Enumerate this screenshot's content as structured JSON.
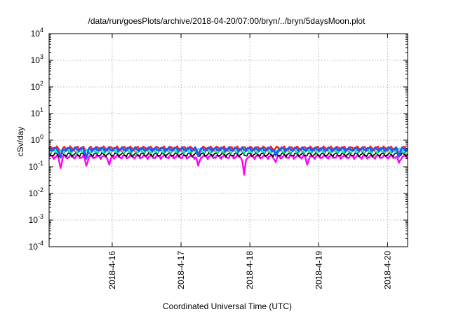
{
  "chart_data": {
    "type": "line",
    "title": "/data/run/goesPlots/archive/2018-04-20/07:00/bryn/../bryn/5daysMoon.plot",
    "xlabel": "Coordinated Universal Time (UTC)",
    "ylabel": "cSv/day",
    "yscale": "log",
    "ylim": [
      0.0001,
      10000
    ],
    "yticks": [
      {
        "value": 0.0001,
        "mantissa": "10",
        "exp": "-4"
      },
      {
        "value": 0.001,
        "mantissa": "10",
        "exp": "-3"
      },
      {
        "value": 0.01,
        "mantissa": "10",
        "exp": "-2"
      },
      {
        "value": 0.1,
        "mantissa": "10",
        "exp": "-1"
      },
      {
        "value": 1,
        "mantissa": "10",
        "exp": "0"
      },
      {
        "value": 10,
        "mantissa": "10",
        "exp": "1"
      },
      {
        "value": 100,
        "mantissa": "10",
        "exp": "2"
      },
      {
        "value": 1000,
        "mantissa": "10",
        "exp": "3"
      },
      {
        "value": 10000,
        "mantissa": "10",
        "exp": "4"
      }
    ],
    "xlim": [
      "2018-04-15T02:00",
      "2018-04-20T07:00"
    ],
    "xticks": [
      {
        "date": "2018-04-16T00:00",
        "label": "2018-4-16"
      },
      {
        "date": "2018-04-17T00:00",
        "label": "2018-4-17"
      },
      {
        "date": "2018-04-18T00:00",
        "label": "2018-4-18"
      },
      {
        "date": "2018-04-19T00:00",
        "label": "2018-4-19"
      },
      {
        "date": "2018-04-20T00:00",
        "label": "2018-4-20"
      }
    ],
    "grid": true,
    "series": [
      {
        "color": "#ff00ff",
        "level": 0.24,
        "dips": [
          [
            "2018-04-15T06:00",
            0.09
          ],
          [
            "2018-04-15T15:00",
            0.11
          ],
          [
            "2018-04-15T23:00",
            0.12
          ],
          [
            "2018-04-17T06:00",
            0.11
          ],
          [
            "2018-04-17T22:00",
            0.05
          ],
          [
            "2018-04-18T09:00",
            0.15
          ],
          [
            "2018-04-18T20:00",
            0.12
          ],
          [
            "2018-04-20T04:00",
            0.14
          ]
        ]
      },
      {
        "color": "#000000",
        "level": 0.29,
        "dips": []
      },
      {
        "color": "#00cc66",
        "level": 0.37,
        "dips": []
      },
      {
        "color": "#00e5ee",
        "level": 0.42,
        "dips": []
      },
      {
        "color": "#ff2020",
        "level": 0.5,
        "dips": [
          [
            "2018-04-15T06:00",
            0.25
          ],
          [
            "2018-04-15T15:00",
            0.22
          ],
          [
            "2018-04-17T06:00",
            0.27
          ],
          [
            "2018-04-20T04:00",
            0.26
          ]
        ]
      },
      {
        "color": "#1a5cff",
        "level": 0.46,
        "dips": [
          [
            "2018-04-15T06:00",
            0.22
          ],
          [
            "2018-04-15T15:00",
            0.2
          ],
          [
            "2018-04-17T06:00",
            0.25
          ],
          [
            "2018-04-18T09:00",
            0.26
          ],
          [
            "2018-04-20T04:00",
            0.24
          ]
        ]
      }
    ]
  }
}
